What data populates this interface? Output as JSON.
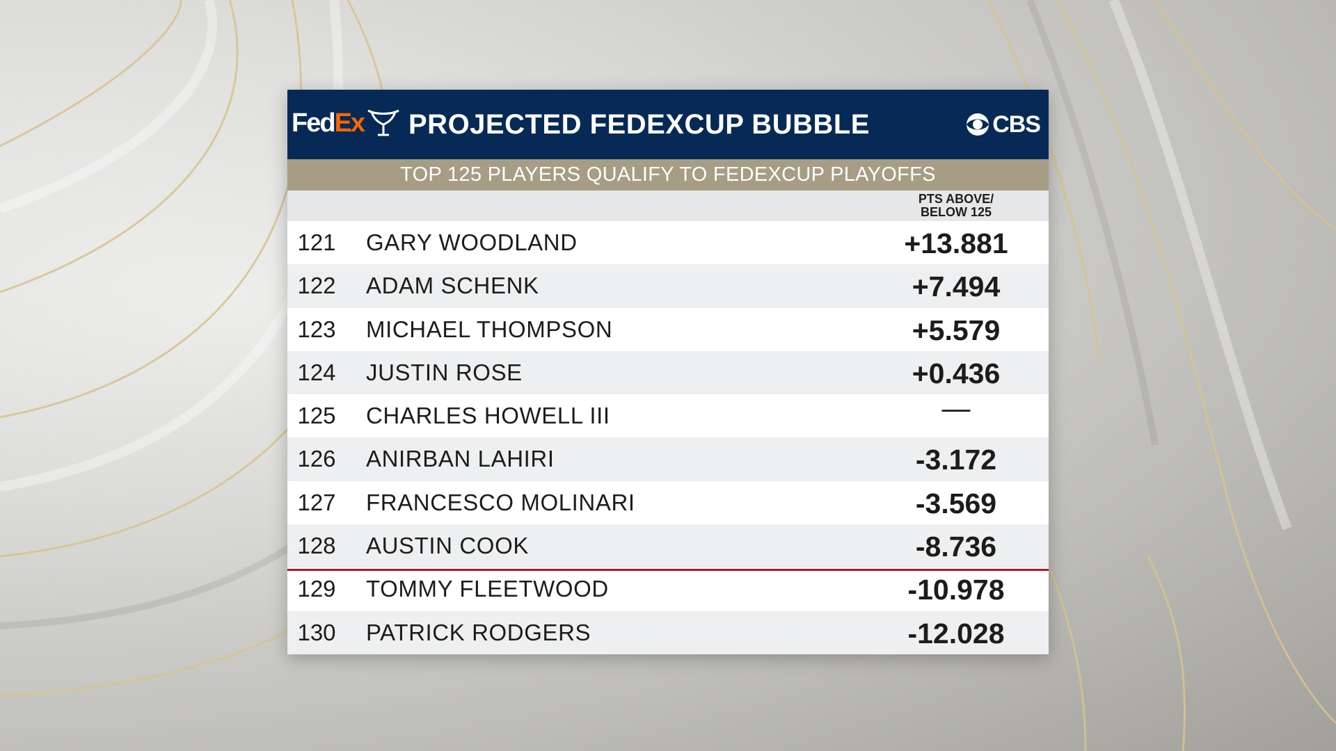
{
  "header": {
    "logo_fed": "Fed",
    "logo_ex": "Ex",
    "title": "PROJECTED FEDEXCUP BUBBLE",
    "network": "CBS"
  },
  "subheader": "TOP 125 PLAYERS QUALIFY TO FEDEXCUP PLAYOFFS",
  "column_header": {
    "line1": "PTS ABOVE/",
    "line2": "BELOW 125"
  },
  "rows": [
    {
      "rank": "121",
      "name": "GARY WOODLAND",
      "pts": "+13.881"
    },
    {
      "rank": "122",
      "name": "ADAM SCHENK",
      "pts": "+7.494"
    },
    {
      "rank": "123",
      "name": "MICHAEL THOMPSON",
      "pts": "+5.579"
    },
    {
      "rank": "124",
      "name": "JUSTIN ROSE",
      "pts": "+0.436"
    },
    {
      "rank": "125",
      "name": "CHARLES HOWELL III",
      "pts": "—"
    },
    {
      "rank": "126",
      "name": "ANIRBAN LAHIRI",
      "pts": "-3.172"
    },
    {
      "rank": "127",
      "name": "FRANCESCO MOLINARI",
      "pts": "-3.569"
    },
    {
      "rank": "128",
      "name": "AUSTIN COOK",
      "pts": "-8.736"
    },
    {
      "rank": "129",
      "name": "TOMMY FLEETWOOD",
      "pts": "-10.978"
    },
    {
      "rank": "130",
      "name": "PATRICK RODGERS",
      "pts": "-12.028"
    }
  ],
  "icons": {
    "trophy": "fedexcup-trophy-icon",
    "network_eye": "cbs-eye-icon"
  },
  "colors": {
    "header_bg": "#062a55",
    "subheader_bg": "#a79d84",
    "fedex_orange": "#ff6600",
    "cutline": "#b7102a"
  }
}
